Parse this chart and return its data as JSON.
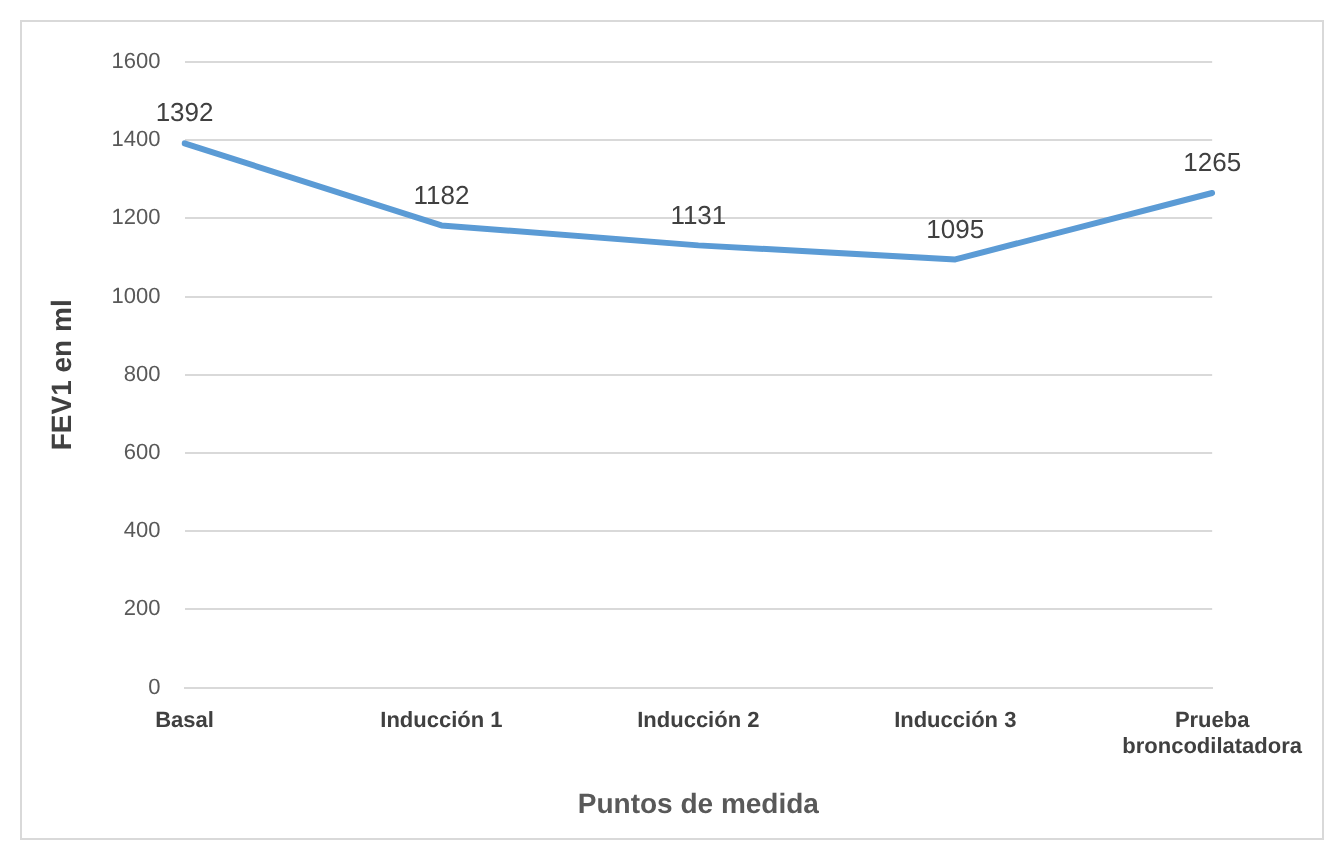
{
  "chart_data": {
    "type": "line",
    "xlabel": "Puntos de medida",
    "ylabel": "FEV1 en ml",
    "categories": [
      "Basal",
      "Inducción 1",
      "Inducción 2",
      "Inducción 3",
      "Prueba broncodilatadora"
    ],
    "series": [
      {
        "color": "#5b9bd5",
        "values": [
          1392,
          1182,
          1131,
          1095,
          1265
        ]
      }
    ],
    "ylim": [
      0,
      1600
    ],
    "yticks": [
      0,
      200,
      400,
      600,
      800,
      1000,
      1200,
      1400,
      1600
    ],
    "grid": "y",
    "legend": false,
    "marker": "none",
    "line_style": "solid",
    "data_labels": true
  }
}
